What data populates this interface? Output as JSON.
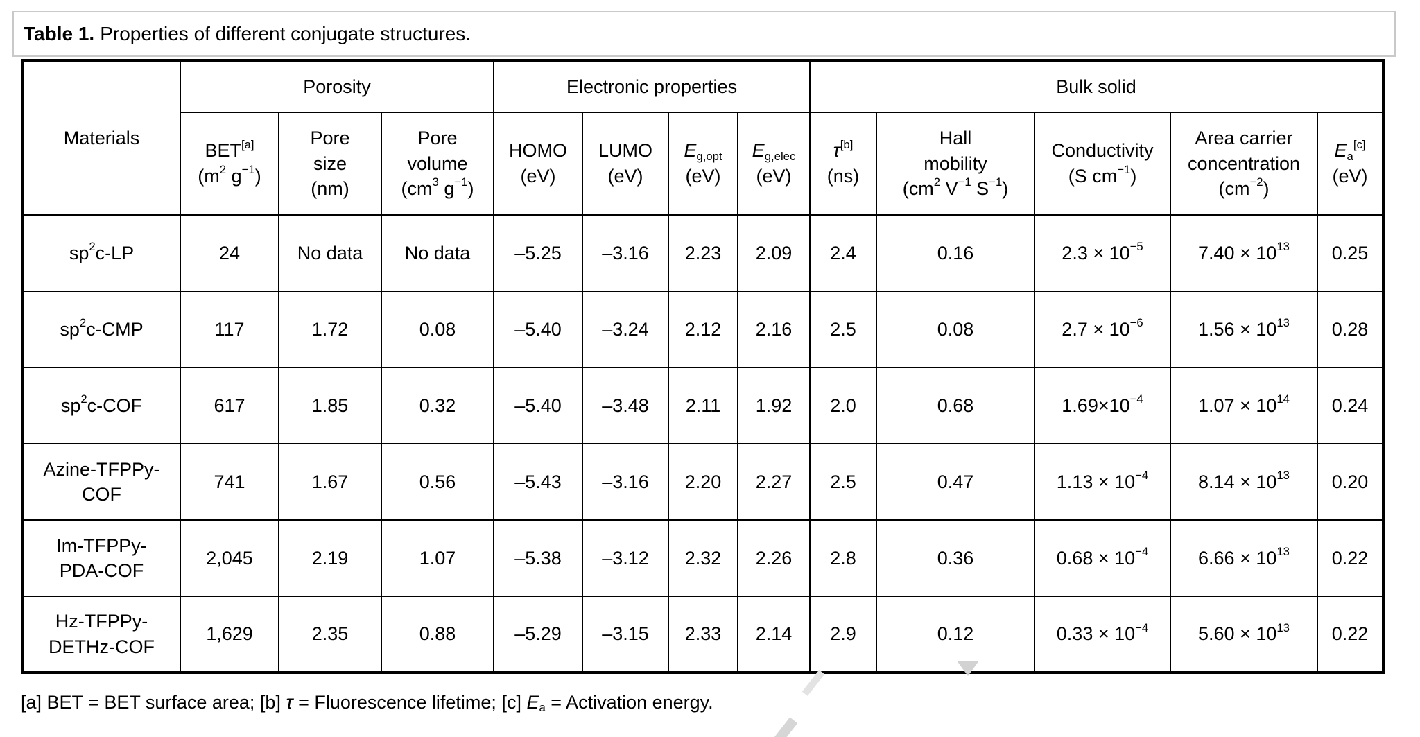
{
  "title": {
    "label": "Table 1.",
    "text": "Properties of different conjugate structures."
  },
  "table": {
    "materials_header": "Materials",
    "groups": [
      "Porosity",
      "Electronic properties",
      "Bulk solid"
    ],
    "subheaders": [
      "BET<sup>[a]</sup><br>(m<sup>2</sup> g<sup>−1</sup>)",
      "Pore<br>size<br>(nm)",
      "Pore<br>volume<br>(cm<sup>3</sup> g<sup>−1</sup>)",
      "HOMO<br>(eV)",
      "LUMO<br>(eV)",
      "<i>E</i><sub>g,opt</sub><br>(eV)",
      "<i>E</i><sub>g,elec</sub><br>(eV)",
      "<i>τ</i><sup>[b]</sup><br>(ns)",
      "Hall<br>mobility<br>(cm<sup>2</sup> V<sup>−1</sup> S<sup>−1</sup>)",
      "Conductivity<br>(S cm<sup>−1</sup>)",
      "Area carrier<br>concentration<br>(cm<sup>−2</sup>)",
      "<i>E</i><sub>a</sub><sup>[c]</sup><br>(eV)"
    ],
    "column_ids": [
      "bet",
      "pore-size",
      "pore-volume",
      "homo",
      "lumo",
      "eg-opt",
      "eg-elec",
      "tau",
      "hall-mobility",
      "conductivity",
      "carrier-concentration",
      "ea"
    ],
    "rows": [
      {
        "material": "sp<sup>2</sup>c-LP",
        "values": [
          "24",
          "No data",
          "No data",
          "–5.25",
          "–3.16",
          "2.23",
          "2.09",
          "2.4",
          "0.16",
          "2.3 × 10<sup>−5</sup>",
          "7.40 × 10<sup>13</sup>",
          "0.25"
        ]
      },
      {
        "material": "sp<sup>2</sup>c-CMP",
        "values": [
          "117",
          "1.72",
          "0.08",
          "–5.40",
          "–3.24",
          "2.12",
          "2.16",
          "2.5",
          "0.08",
          "2.7 × 10<sup>−6</sup>",
          "1.56 × 10<sup>13</sup>",
          "0.28"
        ]
      },
      {
        "material": "sp<sup>2</sup>c-COF",
        "values": [
          "617",
          "1.85",
          "0.32",
          "–5.40",
          "–3.48",
          "2.11",
          "1.92",
          "2.0",
          "0.68",
          "1.69×10<sup>−4</sup>",
          "1.07 × 10<sup>14</sup>",
          "0.24"
        ]
      },
      {
        "material": "Azine-TFPPy-<br>COF",
        "values": [
          "741",
          "1.67",
          "0.56",
          "–5.43",
          "–3.16",
          "2.20",
          "2.27",
          "2.5",
          "0.47",
          "1.13 × 10<sup>−4</sup>",
          "8.14 × 10<sup>13</sup>",
          "0.20"
        ]
      },
      {
        "material": "Im-TFPPy-<br>PDA-COF",
        "values": [
          "2,045",
          "2.19",
          "1.07",
          "–5.38",
          "–3.12",
          "2.32",
          "2.26",
          "2.8",
          "0.36",
          "0.68 × 10<sup>−4</sup>",
          "6.66 × 10<sup>13</sup>",
          "0.22"
        ]
      },
      {
        "material": "Hz-TFPPy-<br>DETHz-COF",
        "values": [
          "1,629",
          "2.35",
          "0.88",
          "–5.29",
          "–3.15",
          "2.33",
          "2.14",
          "2.9",
          "0.12",
          "0.33 × 10<sup>−4</sup>",
          "5.60 × 10<sup>13</sup>",
          "0.22"
        ]
      }
    ]
  },
  "footnote": "[a] BET = BET surface area; [b] <i>τ</i> = Fluorescence lifetime; [c] <i>E</i><sub>a</sub> = Activation energy."
}
